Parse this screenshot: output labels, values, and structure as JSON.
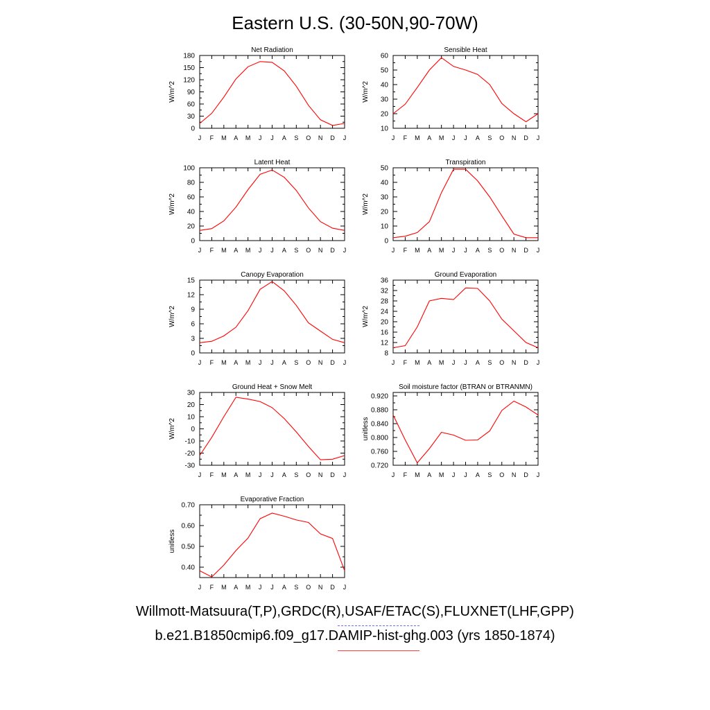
{
  "title": "Eastern U.S. (30-50N,90-70W)",
  "credits": {
    "observations": "Willmott-Matsuura(T,P),GRDC(R),USAF/ETAC(S),FLUXNET(LHF,GPP)",
    "model": "b.e21.B1850cmip6.f09_g17.DAMIP-hist-ghg.003 (yrs 1850-1874)"
  },
  "colors": {
    "model_line": "#ff0000",
    "observations_line": "#6b6bff"
  },
  "chart_data": [
    {
      "type": "line",
      "title": "Net Radiation",
      "ylabel": "W/m^2",
      "categories": [
        "J",
        "F",
        "M",
        "A",
        "M",
        "J",
        "J",
        "A",
        "S",
        "O",
        "N",
        "D",
        "J"
      ],
      "ylim": [
        0,
        180
      ],
      "yticks": [
        "0",
        "30",
        "60",
        "90",
        "120",
        "150",
        "180"
      ],
      "values": [
        12,
        37,
        77,
        122,
        152,
        165,
        163,
        142,
        104,
        57,
        21,
        7,
        12
      ]
    },
    {
      "type": "line",
      "title": "Sensible Heat",
      "ylabel": "W/m^2",
      "categories": [
        "J",
        "F",
        "M",
        "A",
        "M",
        "J",
        "J",
        "A",
        "S",
        "O",
        "N",
        "D",
        "J"
      ],
      "ylim": [
        10,
        60
      ],
      "yticks": [
        "10",
        "20",
        "30",
        "40",
        "50",
        "60"
      ],
      "values": [
        20,
        26.5,
        38,
        50,
        58.5,
        52.5,
        50,
        47,
        40,
        27,
        20,
        14.5,
        20
      ]
    },
    {
      "type": "line",
      "title": "Latent Heat",
      "ylabel": "W/m^2",
      "categories": [
        "J",
        "F",
        "M",
        "A",
        "M",
        "J",
        "J",
        "A",
        "S",
        "O",
        "N",
        "D",
        "J"
      ],
      "ylim": [
        0,
        100
      ],
      "yticks": [
        "0",
        "20",
        "40",
        "60",
        "80",
        "100"
      ],
      "values": [
        14,
        16.5,
        27,
        46,
        70,
        91,
        97,
        87,
        69,
        45,
        26,
        17,
        14
      ]
    },
    {
      "type": "line",
      "title": "Transpiration",
      "ylabel": "W/m^2",
      "categories": [
        "J",
        "F",
        "M",
        "A",
        "M",
        "J",
        "J",
        "A",
        "S",
        "O",
        "N",
        "D",
        "J"
      ],
      "ylim": [
        0,
        50
      ],
      "yticks": [
        "0",
        "10",
        "20",
        "30",
        "40",
        "50"
      ],
      "values": [
        2,
        3,
        5.5,
        13,
        33,
        49,
        49,
        41,
        30,
        17,
        4.5,
        2,
        2
      ]
    },
    {
      "type": "line",
      "title": "Canopy Evaporation",
      "ylabel": "W/m^2",
      "categories": [
        "J",
        "F",
        "M",
        "A",
        "M",
        "J",
        "J",
        "A",
        "S",
        "O",
        "N",
        "D",
        "J"
      ],
      "ylim": [
        0,
        15
      ],
      "yticks": [
        "0",
        "3",
        "6",
        "9",
        "12",
        "15"
      ],
      "values": [
        2.1,
        2.4,
        3.5,
        5.3,
        8.7,
        13.1,
        14.7,
        12.8,
        9.8,
        6.2,
        4.5,
        2.8,
        2.1
      ]
    },
    {
      "type": "line",
      "title": "Ground Evaporation",
      "ylabel": "W/m^2",
      "categories": [
        "J",
        "F",
        "M",
        "A",
        "M",
        "J",
        "J",
        "A",
        "S",
        "O",
        "N",
        "D",
        "J"
      ],
      "ylim": [
        8,
        36
      ],
      "yticks": [
        "8",
        "12",
        "16",
        "20",
        "24",
        "28",
        "32",
        "36"
      ],
      "values": [
        10,
        10.8,
        18,
        28,
        29,
        28.5,
        33,
        32.8,
        28,
        21,
        16.5,
        12,
        10
      ]
    },
    {
      "type": "line",
      "title": "Ground Heat + Snow Melt",
      "ylabel": "W/m^2",
      "categories": [
        "J",
        "F",
        "M",
        "A",
        "M",
        "J",
        "J",
        "A",
        "S",
        "O",
        "N",
        "D",
        "J"
      ],
      "ylim": [
        -30,
        30
      ],
      "yticks": [
        "-30",
        "-20",
        "-10",
        "0",
        "10",
        "20",
        "30"
      ],
      "values": [
        -22,
        -7,
        10,
        26,
        24.5,
        22.5,
        17.5,
        8.5,
        -2.5,
        -14.5,
        -25.5,
        -25,
        -22
      ]
    },
    {
      "type": "line",
      "title": "Soil moisture factor (BTRAN or BTRANMN)",
      "ylabel": "unitless",
      "categories": [
        "J",
        "F",
        "M",
        "A",
        "M",
        "J",
        "J",
        "A",
        "S",
        "O",
        "N",
        "D",
        "J"
      ],
      "ylim": [
        0.72,
        0.93
      ],
      "yticks": [
        "0.720",
        "0.760",
        "0.800",
        "0.840",
        "0.880",
        "0.920"
      ],
      "values": [
        0.865,
        0.793,
        0.727,
        0.768,
        0.815,
        0.807,
        0.792,
        0.793,
        0.819,
        0.878,
        0.905,
        0.888,
        0.865
      ]
    },
    {
      "type": "line",
      "title": "Evaporative Fraction",
      "ylabel": "unitless",
      "categories": [
        "J",
        "F",
        "M",
        "A",
        "M",
        "J",
        "J",
        "A",
        "S",
        "O",
        "N",
        "D",
        "J"
      ],
      "ylim": [
        0.35,
        0.7
      ],
      "yticks": [
        "0.40",
        "0.50",
        "0.60",
        "0.70"
      ],
      "values": [
        0.383,
        0.353,
        0.41,
        0.48,
        0.54,
        0.633,
        0.66,
        0.645,
        0.627,
        0.615,
        0.56,
        0.538,
        0.383
      ]
    }
  ]
}
